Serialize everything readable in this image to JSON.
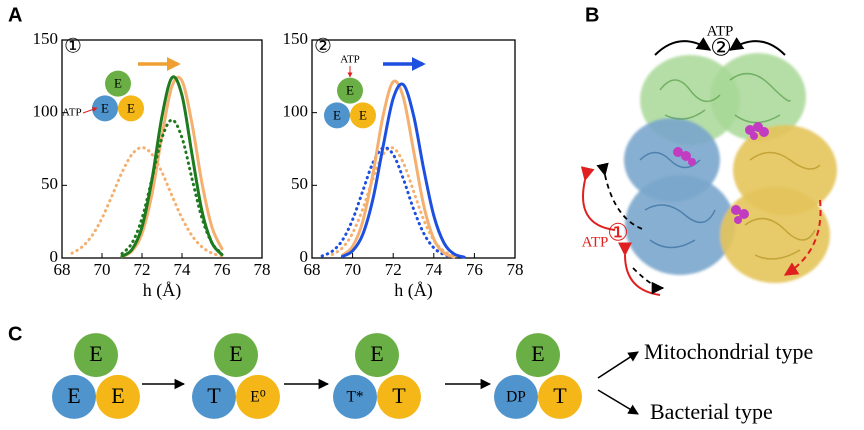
{
  "panel_labels": [
    "A",
    "B",
    "C"
  ],
  "chart_data": [
    {
      "type": "line",
      "annotation": "①",
      "xlabel": "h (Å)",
      "inset": {
        "atp": "ATP",
        "triad": [
          "E",
          "E",
          "E"
        ]
      },
      "x": [
        68.5,
        69,
        69.5,
        70,
        70.5,
        71,
        71.5,
        72,
        72.5,
        73,
        73.5,
        74,
        74.5,
        75,
        75.5,
        76
      ],
      "xlim": [
        68,
        78
      ],
      "xticks": [
        68,
        70,
        72,
        74,
        76,
        78
      ],
      "ylim": [
        0,
        150
      ],
      "yticks": [
        0,
        50,
        100,
        150
      ],
      "arrow_color": "#f0a030",
      "series": [
        {
          "color": "#f5b070",
          "style": "dotted",
          "values": [
            3.3,
            7.6,
            15.4,
            27.4,
            42.8,
            58.9,
            71.3,
            76,
            71.3,
            58.9,
            42.8,
            27.4,
            15.4,
            7.6,
            3.3,
            1.3
          ]
        },
        {
          "color": "#f5b070",
          "style": "solid",
          "values": [
            null,
            null,
            null,
            null,
            null,
            1.0,
            4.8,
            16.9,
            44.1,
            84.2,
            118.3,
            121.9,
            92.4,
            51.4,
            21.1,
            6.3
          ]
        },
        {
          "color": "#1e7a1e",
          "style": "dotted",
          "values": [
            null,
            null,
            null,
            null,
            null,
            3.0,
            10.3,
            27.3,
            54.6,
            82.7,
            95,
            82.7,
            54.6,
            27.3,
            10.3,
            3.0
          ]
        },
        {
          "color": "#1e7a1e",
          "style": "solid",
          "values": [
            null,
            null,
            null,
            null,
            null,
            1.2,
            5.9,
            21.3,
            54.1,
            97.5,
            124.1,
            111.9,
            71.4,
            32.2,
            10.3,
            2.3
          ]
        }
      ]
    },
    {
      "type": "line",
      "annotation": "②",
      "xlabel": "h (Å)",
      "inset": {
        "atp": "ATP",
        "triad": [
          "E",
          "E",
          "E"
        ]
      },
      "x": [
        68.5,
        69,
        69.5,
        70,
        70.5,
        71,
        71.5,
        72,
        72.5,
        73,
        73.5,
        74,
        74.5,
        75,
        75.5,
        76
      ],
      "xlim": [
        68,
        78
      ],
      "xticks": [
        68,
        70,
        72,
        74,
        76,
        78
      ],
      "ylim": [
        0,
        150
      ],
      "yticks": [
        0,
        50,
        100,
        150
      ],
      "arrow_color": "#1d4fe0",
      "series": [
        {
          "color": "#f5b070",
          "style": "dotted",
          "values": [
            null,
            2.4,
            7.0,
            17.1,
            33.8,
            54.4,
            71.2,
            75.7,
            65.5,
            46.1,
            26.4,
            12.3,
            4.7,
            1.4,
            null,
            null
          ]
        },
        {
          "color": "#1d4fe0",
          "style": "dotted",
          "values": [
            1.4,
            4.7,
            12.3,
            26.4,
            46.1,
            65.5,
            75.7,
            71.2,
            54.4,
            33.8,
            17.1,
            7.0,
            2.4,
            0.6,
            null,
            null
          ]
        },
        {
          "color": "#f5b070",
          "style": "solid",
          "values": [
            null,
            null,
            1.9,
            8.0,
            25.1,
            57.8,
            97.7,
            121.3,
            110.5,
            74.0,
            36.4,
            13.1,
            3.5,
            0.7,
            null,
            null
          ]
        },
        {
          "color": "#1d4fe0",
          "style": "solid",
          "values": [
            null,
            null,
            1.1,
            4.9,
            16.2,
            40.5,
            76.6,
            109.8,
            119.3,
            98.3,
            61.4,
            29.1,
            10.4,
            2.8,
            0.6,
            null
          ]
        }
      ]
    }
  ],
  "structure": {
    "top_label": "ATP",
    "top_state": "②",
    "side_label": "ATP",
    "side_state": "①"
  },
  "pathway": {
    "states": [
      [
        "E",
        "E",
        "E"
      ],
      [
        "E",
        "T",
        "E⁰"
      ],
      [
        "E",
        "T*",
        "T"
      ],
      [
        "E",
        "DP",
        "T"
      ]
    ],
    "outcomes": [
      "Mitochondrial type",
      "Bacterial type"
    ]
  }
}
